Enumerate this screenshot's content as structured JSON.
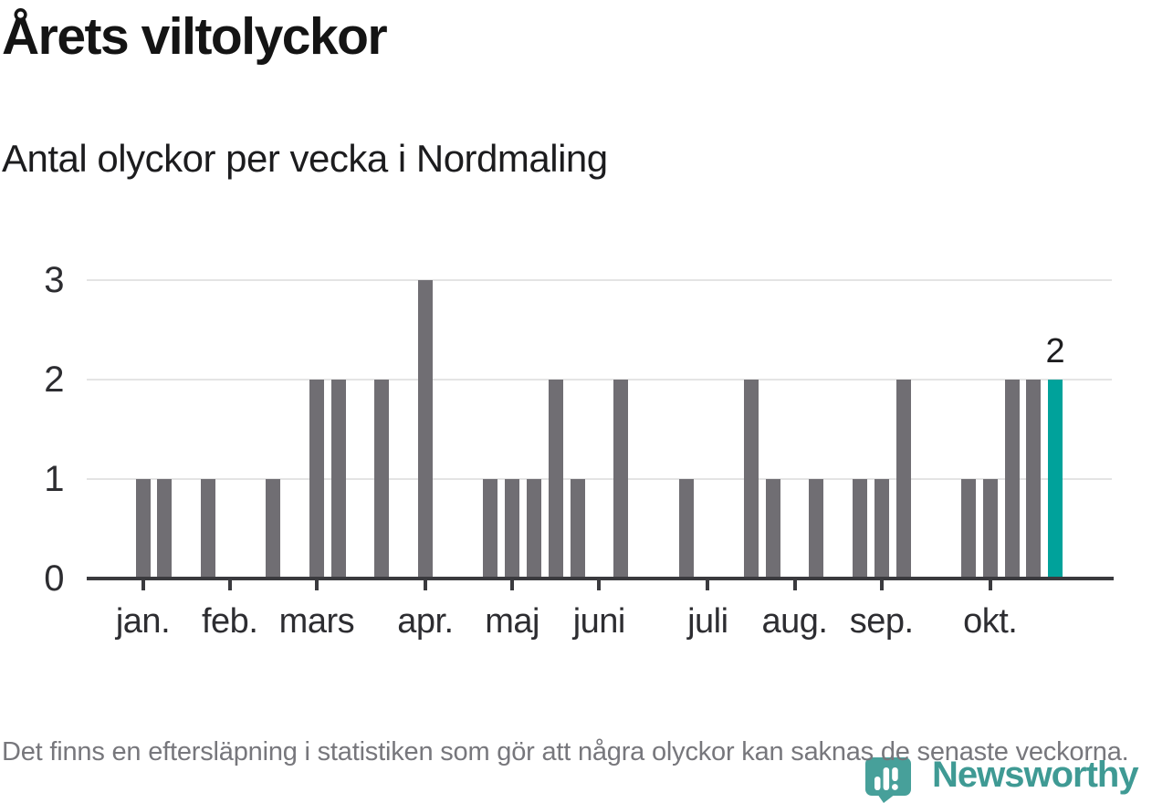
{
  "header": {
    "note": "static news graphic"
  },
  "chart_data": {
    "type": "bar",
    "title": "Årets viltolyckor",
    "subtitle": "Antal olyckor per vecka i Nordmaling",
    "x_unit": "vecka",
    "num_weeks": 43,
    "values": [
      1,
      1,
      0,
      1,
      0,
      0,
      1,
      0,
      2,
      2,
      0,
      2,
      0,
      3,
      0,
      0,
      1,
      1,
      1,
      2,
      1,
      0,
      2,
      0,
      0,
      1,
      0,
      0,
      2,
      1,
      0,
      1,
      0,
      1,
      1,
      2,
      0,
      0,
      1,
      1,
      2,
      2,
      2
    ],
    "month_ticks": [
      {
        "label": "jan.",
        "week": 0
      },
      {
        "label": "feb.",
        "week": 4
      },
      {
        "label": "mars",
        "week": 8
      },
      {
        "label": "apr.",
        "week": 13
      },
      {
        "label": "maj",
        "week": 17
      },
      {
        "label": "juni",
        "week": 21
      },
      {
        "label": "juli",
        "week": 26
      },
      {
        "label": "aug.",
        "week": 30
      },
      {
        "label": "sep.",
        "week": 34
      },
      {
        "label": "okt.",
        "week": 39
      }
    ],
    "yticks": [
      0,
      1,
      2,
      3
    ],
    "ylim": [
      0,
      3
    ],
    "grid": true,
    "legend": "none",
    "highlight": {
      "index": 42,
      "value": 2,
      "value_label": "2"
    },
    "colors": {
      "bar": "#706e73",
      "highlight": "#00a29b",
      "grid": "#e4e4e4",
      "axis": "#3a3a3e",
      "tick_text": "#2d2d31"
    }
  },
  "footer": {
    "note": "Det finns en eftersläpning i statistiken som gör att några olyckor kan saknas de senaste veckorna."
  },
  "logo": {
    "wordmark": "Newsworthy",
    "pin_color": "#47a09a",
    "text_color": "#3f9a94"
  }
}
